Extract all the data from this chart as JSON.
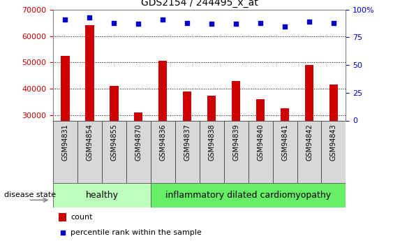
{
  "title": "GDS2154 / 244495_x_at",
  "categories": [
    "GSM94831",
    "GSM94854",
    "GSM94855",
    "GSM94870",
    "GSM94836",
    "GSM94837",
    "GSM94838",
    "GSM94839",
    "GSM94840",
    "GSM94841",
    "GSM94842",
    "GSM94843"
  ],
  "counts": [
    52500,
    64000,
    41000,
    31000,
    50500,
    39000,
    37500,
    43000,
    36000,
    32500,
    49000,
    41500
  ],
  "percentile_ranks": [
    91,
    93,
    88,
    87,
    91,
    88,
    87,
    87,
    88,
    85,
    89,
    88
  ],
  "ylim_left": [
    28000,
    70000
  ],
  "ylim_right": [
    0,
    100
  ],
  "yticks_left": [
    30000,
    40000,
    50000,
    60000,
    70000
  ],
  "yticks_right": [
    0,
    25,
    50,
    75,
    100
  ],
  "bar_color": "#cc0000",
  "dot_color": "#0000cc",
  "n_healthy": 4,
  "healthy_label": "healthy",
  "disease_label": "inflammatory dilated cardiomyopathy",
  "disease_state_label": "disease state",
  "legend_count_label": "count",
  "legend_pct_label": "percentile rank within the sample",
  "healthy_color": "#bbffbb",
  "disease_color": "#66ee66",
  "grid_color": "#000000",
  "bar_bottom": 28000,
  "ylabel_left_color": "#cc0000",
  "ylabel_right_color": "#0000cc",
  "title_fontsize": 10,
  "tick_label_fontsize": 7,
  "bar_width": 0.35
}
